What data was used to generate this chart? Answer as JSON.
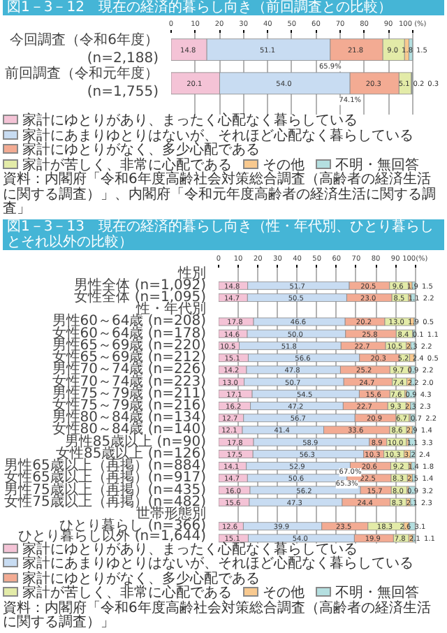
{
  "chart_data": [
    {
      "type": "bar",
      "orientation": "horizontal",
      "stacked": true,
      "title": "図1－3－12　現在の経済的暮らし向き（前回調査との比較）",
      "categories": [
        "今回調査（令和6年度）\n(n=2,188)",
        "前回調査（令和元年度）\n(n=1,755)"
      ],
      "series": [
        {
          "name": "家計にゆとりがあり、まったく心配なく暮らしている",
          "color": "#f4c3d6",
          "values": [
            14.8,
            20.1
          ],
          "value_labels": [
            "14.8",
            "20.1"
          ]
        },
        {
          "name": "家計にあまりゆとりはないが、それほど心配なく暮らしている",
          "color": "#c8dcf2",
          "values": [
            51.1,
            54.0
          ],
          "value_labels": [
            "51.1",
            "54.0"
          ]
        },
        {
          "name": "家計にゆとりがなく、多少心配である",
          "color": "#f3ab93",
          "values": [
            21.8,
            20.3
          ],
          "value_labels": [
            "21.8",
            "20.3"
          ]
        },
        {
          "name": "家計が苦しく、非常に心配である",
          "color": "#e3eba8",
          "values": [
            9.0,
            5.1
          ],
          "value_labels": [
            "9.0",
            "5.1"
          ]
        },
        {
          "name": "その他",
          "color": "#f8c98f",
          "values": [
            1.8,
            0.2
          ],
          "value_labels": [
            "1.8",
            "0.2"
          ]
        },
        {
          "name": "不明・無回答",
          "color": "#b4dfe0",
          "values": [
            1.5,
            0.3
          ],
          "value_labels": [
            "1.5",
            "0.3"
          ]
        }
      ],
      "xlim": [
        0,
        100
      ],
      "xticks": [
        0,
        10,
        20,
        30,
        40,
        50,
        60,
        70,
        80,
        90,
        {
          "value": 100,
          "label": "100 (%)"
        }
      ],
      "grid": "x",
      "legend": "bottom",
      "annotations": [
        {
          "text": "65.9%",
          "x": 65.9,
          "y": "今回調査（令和6年度）\n(n=2,188)"
        },
        {
          "text": "74.1%",
          "x": 74.1,
          "y": "前回調査（令和元年度）\n(n=1,755)"
        },
        "資料：内閣府「令和6年度高齢社会対策総合調査（高齢者の経済生活に関する調査）」、内閣府「令和元年度高齢者の経済生活に関する調査」"
      ]
    },
    {
      "type": "bar",
      "orientation": "horizontal",
      "stacked": true,
      "title": "図1－3－13　現在の経済的暮らし向き（性・年代別、ひとり暮らしとそれ以外の比較）",
      "categories": [
        "性別",
        "男性全体 (n=1,092)",
        "女性全体 (n=1,095)",
        "性・年代別",
        "男性60～64歳 (n=208)",
        "女性60～64歳 (n=178)",
        "男性65～69歳 (n=220)",
        "女性65～69歳 (n=212)",
        "男性70～74歳 (n=226)",
        "女性70～74歳 (n=223)",
        "男性75～79歳 (n=211)",
        "女性75～79歳 (n=216)",
        "男性80～84歳 (n=134)",
        "女性80～84歳 (n=140)",
        "男性85歳以上 (n=90)",
        "女性85歳以上 (n=126)",
        "男性65歳以上（再掲）(n=884)",
        "女性65歳以上（再掲）(n=917)",
        "男性75歳以上（再掲）(n=435)",
        "女性75歳以上（再掲）(n=482)",
        "世帯形態別",
        "ひとり暮らし (n=366)",
        "ひとり暮らし以外 (n=1,644)"
      ],
      "series": [
        {
          "name": "家計にゆとりがあり、まったく心配なく暮らしている",
          "color": "#f4c3d6",
          "values": [
            null,
            14.8,
            14.7,
            null,
            17.8,
            14.6,
            10.5,
            15.1,
            14.2,
            13.0,
            17.1,
            16.2,
            12.7,
            12.1,
            17.8,
            17.5,
            14.1,
            14.7,
            16.0,
            15.6,
            null,
            12.6,
            15.1
          ],
          "value_labels": [
            null,
            "14.8",
            "14.7",
            null,
            "17.8",
            "14.6",
            "10.5",
            "15.1",
            "14.2",
            "13.0",
            "17.1",
            "16.2",
            "12.7",
            "12.1",
            "17.8",
            "17.5",
            "14.1",
            "14.7",
            "16.0",
            "15.6",
            null,
            "12.6",
            "15.1"
          ]
        },
        {
          "name": "家計にあまりゆとりはないが、それほど心配なく暮らしている",
          "color": "#c8dcf2",
          "values": [
            null,
            51.7,
            50.5,
            null,
            46.6,
            50.0,
            51.8,
            56.6,
            47.8,
            50.7,
            54.5,
            47.2,
            56.7,
            41.4,
            58.9,
            56.3,
            52.9,
            50.6,
            56.2,
            47.3,
            null,
            39.9,
            54.0
          ],
          "value_labels": [
            null,
            "51.7",
            "50.5",
            null,
            "46.6",
            "50.0",
            "51.8",
            "56.6",
            "47.8",
            "50.7",
            "54.5",
            "47.2",
            "56.7",
            "41.4",
            "58.9",
            "56.3",
            "52.9",
            "50.6",
            "56.2",
            "47.3",
            null,
            "39.9",
            "54.0"
          ]
        },
        {
          "name": "家計にゆとりがなく、多少心配である",
          "color": "#f3ab93",
          "values": [
            null,
            20.5,
            23.0,
            null,
            20.2,
            25.8,
            22.7,
            20.3,
            25.2,
            24.7,
            15.6,
            22.7,
            20.9,
            33.6,
            8.9,
            10.3,
            20.6,
            22.5,
            15.7,
            24.4,
            null,
            23.5,
            19.9
          ],
          "value_labels": [
            null,
            "20.5",
            "23.0",
            null,
            "20.2",
            "25.8",
            "22.7",
            "20.3",
            "25.2",
            "24.7",
            "15.6",
            "22.7",
            "20.9",
            "33.6",
            "8.9",
            "10.3",
            "20.6",
            "22.5",
            "15.7",
            "24.4",
            null,
            "23.5",
            "19.9"
          ]
        },
        {
          "name": "家計が苦しく、非常に心配である",
          "color": "#e3eba8",
          "values": [
            null,
            9.6,
            8.5,
            null,
            13.0,
            8.4,
            10.5,
            5.2,
            9.7,
            7.4,
            7.6,
            9.3,
            6.7,
            8.6,
            10.0,
            10.3,
            9.2,
            8.3,
            8.0,
            8.3,
            null,
            18.3,
            7.8
          ],
          "value_labels": [
            null,
            "9.6",
            "8.5",
            null,
            "13.0",
            "8.4",
            "10.5",
            "5.2",
            "9.7",
            "7.4",
            "7.6",
            "9.3",
            "6.7",
            "8.6",
            "10.0",
            "10.3",
            "9.2",
            "8.3",
            "8.0",
            "8.3",
            null,
            "18.3",
            "7.8"
          ]
        },
        {
          "name": "その他",
          "color": "#f8c98f",
          "values": [
            null,
            1.9,
            1.1,
            null,
            1.9,
            0.1,
            2.3,
            2.4,
            0.9,
            2.2,
            0.9,
            2.3,
            0.7,
            2.9,
            1.1,
            3.2,
            1.4,
            2.5,
            0.9,
            2.1,
            null,
            2.6,
            2.1
          ],
          "value_labels": [
            null,
            "1.9",
            "1.1",
            null,
            "1.9",
            "0.1",
            "2.3",
            "2.4",
            "0.9",
            "2.2",
            "0.9",
            "2.3",
            "0.7",
            "2.9",
            "1.1",
            "3.2",
            "1.4",
            "2.5",
            "0.9",
            "2.1",
            null,
            "2.6",
            "2.1"
          ]
        },
        {
          "name": "不明・無回答",
          "color": "#b4dfe0",
          "values": [
            null,
            1.5,
            2.2,
            null,
            0.5,
            1.1,
            2.2,
            0.5,
            2.2,
            2.0,
            4.3,
            2.3,
            2.2,
            1.4,
            3.3,
            2.4,
            1.8,
            1.4,
            3.2,
            2.3,
            null,
            3.1,
            1.1
          ],
          "value_labels": [
            null,
            "1.5",
            "2.2",
            null,
            "0.5",
            "1.1",
            "2.2",
            "0.5",
            "2.2",
            "2.0",
            "4.3",
            "2.3",
            "2.2",
            "1.4",
            "3.3",
            "2.4",
            "1.8",
            "1.4",
            "3.2",
            "2.3",
            null,
            "3.1",
            "1.1"
          ]
        }
      ],
      "xlim": [
        0,
        100
      ],
      "xticks": [
        0,
        10,
        20,
        30,
        40,
        50,
        60,
        70,
        80,
        90,
        {
          "value": 100,
          "label": "100(%)"
        }
      ],
      "grid": "x",
      "legend": "bottom",
      "annotations": [
        {
          "text": "67.0%",
          "x": 67.0,
          "y": "男性65歳以上（再掲）(n=884)"
        },
        {
          "text": "65.3%",
          "x": 65.3,
          "y": "女性65歳以上（再掲）(n=917)"
        },
        "資料：内閣府「令和6年度高齢社会対策総合調査（高齢者の経済生活に関する調査）」"
      ]
    }
  ]
}
